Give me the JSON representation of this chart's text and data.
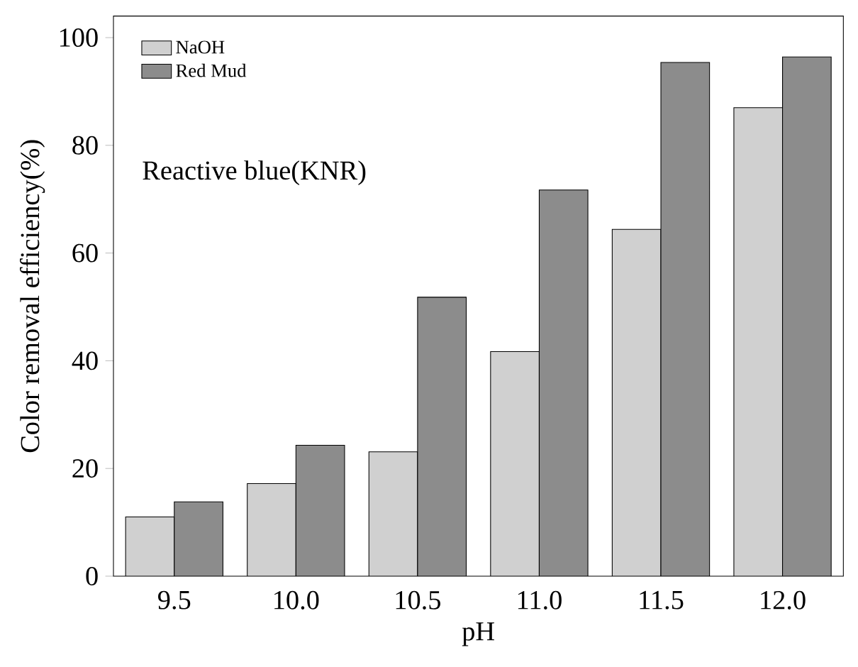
{
  "chart_data": {
    "type": "bar",
    "xlabel": "pH",
    "ylabel": "Color removal efficiency(%)",
    "categories": [
      "9.5",
      "10.0",
      "10.5",
      "11.0",
      "11.5",
      "12.0"
    ],
    "series": [
      {
        "name": "NaOH",
        "color": "#d0d0d0",
        "values": [
          11.0,
          17.2,
          23.1,
          41.7,
          64.4,
          87.0
        ]
      },
      {
        "name": "Red Mud",
        "color": "#8c8c8c",
        "values": [
          13.8,
          24.3,
          51.8,
          71.7,
          95.4,
          96.4
        ]
      }
    ],
    "ylim": [
      0,
      104
    ],
    "yticks": [
      0,
      20,
      40,
      60,
      80,
      100
    ],
    "legend": "top left",
    "grid": false,
    "annotations": [
      "Reactive blue(KNR)"
    ]
  }
}
